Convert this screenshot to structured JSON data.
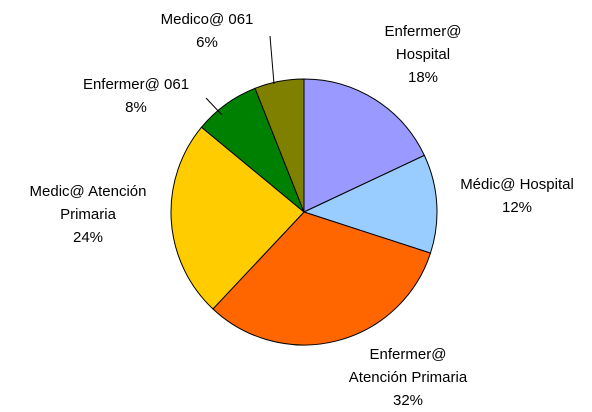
{
  "chart_data": {
    "type": "pie",
    "categories": [
      "Enfermer@ Hospital",
      "Médic@ Hospital",
      "Enfermer@ Atención Primaria",
      "Medic@ Atención Primaria",
      "Enfermer@ 061",
      "Medico@ 061"
    ],
    "values": [
      18,
      12,
      32,
      24,
      8,
      6
    ],
    "value_labels": [
      "18%",
      "12%",
      "32%",
      "24%",
      "8%",
      "6%"
    ],
    "colors": [
      "#9999ff",
      "#99ccff",
      "#ff6600",
      "#ffcc00",
      "#008000",
      "#808000"
    ]
  }
}
